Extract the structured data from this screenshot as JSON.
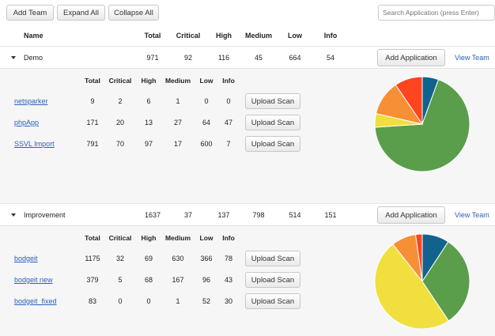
{
  "toolbar": {
    "add_team": "Add Team",
    "expand_all": "Expand All",
    "collapse_all": "Collapse All",
    "search_placeholder": "Search Application (press Enter)"
  },
  "headers": {
    "name": "Name",
    "total": "Total",
    "critical": "Critical",
    "high": "High",
    "medium": "Medium",
    "low": "Low",
    "info": "Info"
  },
  "sub_headers": {
    "total": "Total",
    "critical": "Critical",
    "high": "High",
    "medium": "Medium",
    "low": "Low",
    "info": "Info"
  },
  "actions": {
    "add_application": "Add Application",
    "view_team": "View Team",
    "upload_scan": "Upload Scan"
  },
  "colors": {
    "critical": "#ff4420",
    "high": "#f78f36",
    "medium": "#f0df3e",
    "low": "#5a9e4b",
    "info": "#12628e"
  },
  "teams": [
    {
      "name": "Demo",
      "total": "971",
      "critical": "92",
      "high": "116",
      "medium": "45",
      "low": "664",
      "info": "54",
      "apps": [
        {
          "name": "netsparker",
          "total": "9",
          "critical": "2",
          "high": "6",
          "medium": "1",
          "low": "0",
          "info": "0"
        },
        {
          "name": "phpApp",
          "total": "171",
          "critical": "20",
          "high": "13",
          "medium": "27",
          "low": "64",
          "info": "47"
        },
        {
          "name": "SSVL Import",
          "total": "791",
          "critical": "70",
          "high": "97",
          "medium": "17",
          "low": "600",
          "info": "7"
        }
      ]
    },
    {
      "name": "Improvement",
      "total": "1637",
      "critical": "37",
      "high": "137",
      "medium": "798",
      "low": "514",
      "info": "151",
      "apps": [
        {
          "name": "bodgeit",
          "total": "1175",
          "critical": "32",
          "high": "69",
          "medium": "630",
          "low": "366",
          "info": "78"
        },
        {
          "name": "bodgeit new",
          "total": "379",
          "critical": "5",
          "high": "68",
          "medium": "167",
          "low": "96",
          "info": "43"
        },
        {
          "name": "bodgeit_fixed",
          "total": "83",
          "critical": "0",
          "high": "0",
          "medium": "1",
          "low": "52",
          "info": "30"
        }
      ]
    }
  ],
  "chart_data": [
    {
      "type": "pie",
      "categories": [
        "Info",
        "Low",
        "Medium",
        "High",
        "Critical"
      ],
      "values": [
        54,
        664,
        45,
        116,
        92
      ]
    },
    {
      "type": "pie",
      "categories": [
        "Info",
        "Low",
        "Medium",
        "High",
        "Critical"
      ],
      "values": [
        151,
        514,
        798,
        137,
        37
      ]
    }
  ]
}
